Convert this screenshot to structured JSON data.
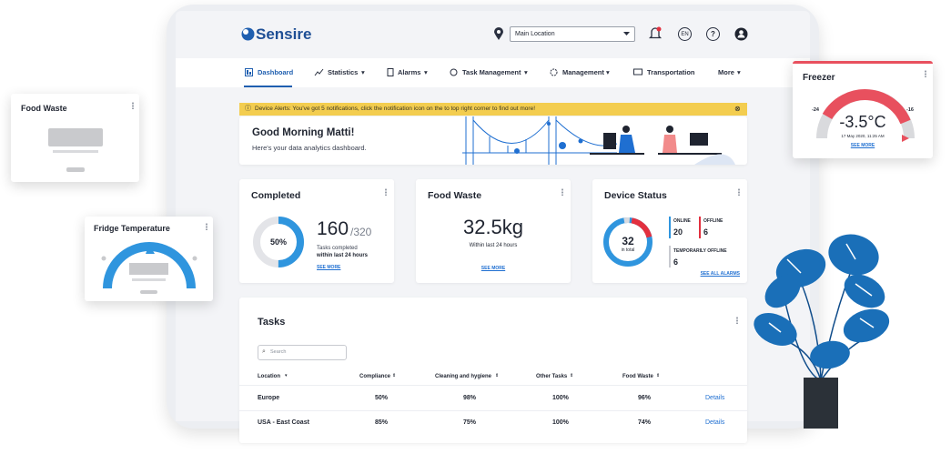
{
  "logo": "Sensire",
  "header": {
    "location": "Main Location",
    "language": "EN",
    "help": "?"
  },
  "nav": [
    "Dashboard",
    "Statistics",
    "Alarms",
    "Task Management",
    "Management",
    "Transportation",
    "More"
  ],
  "alert": "Device Alerts: You've got 5 notifications, click the notification icon on the to top right corner to find out more!",
  "greeting": {
    "title": "Good Morning Matti!",
    "subtitle": "Here's your data analytics dashboard."
  },
  "completed": {
    "title": "Completed",
    "percent": "50%",
    "done": 160,
    "total": "/320",
    "caption": "Tasks completed",
    "period": "within last 24 hours",
    "link": "SEE MORE"
  },
  "food_waste": {
    "title": "Food Waste",
    "value": "32.5kg",
    "caption": "Within last 24 hours",
    "link": "SEE MORE"
  },
  "device_status": {
    "title": "Device Status",
    "total": 32,
    "total_label": "in total",
    "online_label": "ONLINE",
    "online": 20,
    "offline_label": "OFFLINE",
    "offline": 6,
    "temp_label": "TEMPORARILY OFFLINE",
    "temp": 6,
    "link": "SEE ALL ALARMS"
  },
  "tasks": {
    "title": "Tasks",
    "search": "Search",
    "columns": [
      "Location",
      "Compliance",
      "Cleaning and hygiene",
      "Other Tasks",
      "Food Waste"
    ],
    "rows": [
      [
        "Europe",
        "50%",
        "98%",
        "100%",
        "96%",
        "Details"
      ],
      [
        "USA - East Coast",
        "85%",
        "75%",
        "100%",
        "74%",
        "Details"
      ]
    ]
  },
  "widgets": {
    "food_waste": "Food Waste",
    "fridge": "Fridge Temperature",
    "freezer": {
      "title": "Freezer",
      "value": "-3.5°C",
      "min": -24,
      "max": -16,
      "timestamp": "17 May 2020, 11:25 AM",
      "link": "SEE MORE"
    }
  }
}
